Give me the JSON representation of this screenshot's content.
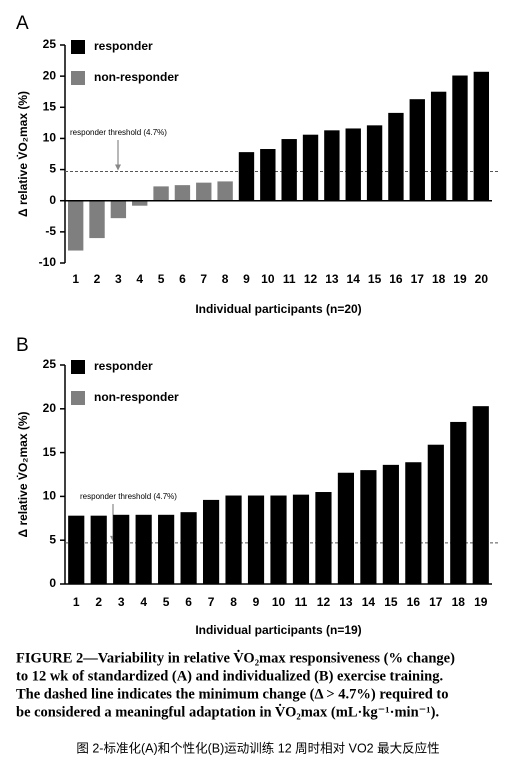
{
  "chart_data": [
    {
      "type": "bar",
      "panel_label": "A",
      "ylabel": "Δ relative V̇O₂max (%)",
      "xlabel": "Individual participants (n=20)",
      "categories": [
        "1",
        "2",
        "3",
        "4",
        "5",
        "6",
        "7",
        "8",
        "9",
        "10",
        "11",
        "12",
        "13",
        "14",
        "15",
        "16",
        "17",
        "18",
        "19",
        "20"
      ],
      "series": [
        {
          "name": "responder",
          "color": "#000000",
          "values": [
            null,
            null,
            null,
            null,
            null,
            null,
            null,
            null,
            7.8,
            8.3,
            9.9,
            10.6,
            11.3,
            11.6,
            12.1,
            14.1,
            16.3,
            17.5,
            20.1,
            20.7
          ]
        },
        {
          "name": "non-responder",
          "color": "#7f7f7f",
          "values": [
            -8,
            -6,
            -2.8,
            -0.8,
            2.3,
            2.5,
            2.9,
            3.1,
            null,
            null,
            null,
            null,
            null,
            null,
            null,
            null,
            null,
            null,
            null,
            null
          ]
        }
      ],
      "ylim": [
        -10,
        25
      ],
      "yticks": [
        -10,
        -5,
        0,
        5,
        10,
        15,
        20,
        25
      ],
      "threshold": 4.7,
      "annotation": "responder threshold (4.7%)"
    },
    {
      "type": "bar",
      "panel_label": "B",
      "ylabel": "Δ relative V̇O₂max (%)",
      "xlabel": "Individual participants (n=19)",
      "categories": [
        "1",
        "2",
        "3",
        "4",
        "5",
        "6",
        "7",
        "8",
        "9",
        "10",
        "11",
        "12",
        "13",
        "14",
        "15",
        "16",
        "17",
        "18",
        "19"
      ],
      "series": [
        {
          "name": "responder",
          "color": "#000000",
          "values": [
            7.8,
            7.8,
            7.9,
            7.9,
            7.9,
            8.2,
            9.6,
            10.1,
            10.1,
            10.1,
            10.2,
            10.5,
            12.7,
            13.0,
            13.6,
            13.9,
            15.9,
            18.5,
            20.3
          ]
        },
        {
          "name": "non-responder",
          "color": "#7f7f7f",
          "values": [
            null,
            null,
            null,
            null,
            null,
            null,
            null,
            null,
            null,
            null,
            null,
            null,
            null,
            null,
            null,
            null,
            null,
            null,
            null
          ]
        }
      ],
      "ylim": [
        0,
        25
      ],
      "yticks": [
        0,
        5,
        10,
        15,
        20,
        25
      ],
      "threshold": 4.7,
      "annotation": "responder threshold (4.7%)"
    }
  ],
  "caption": [
    "FIGURE 2—Variability in relative V̇O₂max responsiveness (% change)",
    "to 12 wk of standardized (A) and individualized (B) exercise training.",
    "The dashed line indicates the minimum change (Δ > 4.7%) required to",
    "be considered a meaningful adaptation in V̇O₂max (mL·kg⁻¹·min⁻¹)."
  ],
  "translation": "图 2-标准化(A)和个性化(B)运动训练 12 周时相对 VO2 最大反应性"
}
